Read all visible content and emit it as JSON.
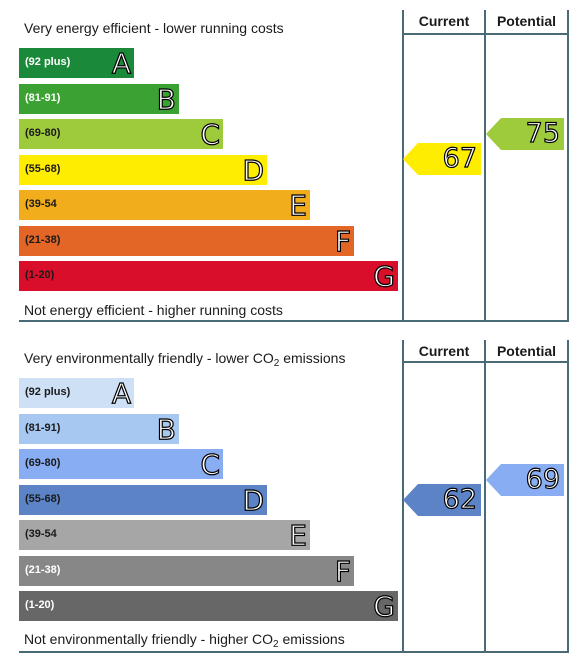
{
  "energy": {
    "top_caption": "Very energy efficient - lower running costs",
    "bottom_caption": "Not energy efficient - higher running costs",
    "current_label": "Current",
    "potential_label": "Potential",
    "current_value": "67",
    "potential_value": "75",
    "current_color": "#ffed00",
    "potential_color": "#9ecb3c",
    "bands": [
      {
        "range": "(92 plus)",
        "letter": "A",
        "color": "#1a8a3a",
        "text_color": "#ffffff"
      },
      {
        "range": "(81-91)",
        "letter": "B",
        "color": "#3aa132",
        "text_color": "#ffffff"
      },
      {
        "range": "(69-80)",
        "letter": "C",
        "color": "#9ecb3c",
        "text_color": "#1a1a1a"
      },
      {
        "range": "(55-68)",
        "letter": "D",
        "color": "#ffed00",
        "text_color": "#1a1a1a"
      },
      {
        "range": "(39-54",
        "letter": "E",
        "color": "#f2ad1c",
        "text_color": "#1a1a1a"
      },
      {
        "range": "(21-38)",
        "letter": "F",
        "color": "#e46626",
        "text_color": "#1a1a1a"
      },
      {
        "range": "(1-20)",
        "letter": "G",
        "color": "#d90e2a",
        "text_color": "#1a1a1a"
      }
    ]
  },
  "environment": {
    "top_caption_pre": "Very environmentally friendly - lower CO",
    "top_caption_sub": "2",
    "top_caption_post": " emissions",
    "bottom_caption_pre": "Not environmentally friendly - higher CO",
    "bottom_caption_sub": "2",
    "bottom_caption_post": " emissions",
    "current_label": "Current",
    "potential_label": "Potential",
    "current_value": "62",
    "potential_value": "69",
    "current_color": "#5b83c6",
    "potential_color": "#88adf2",
    "bands": [
      {
        "range": "(92 plus)",
        "letter": "A",
        "color": "#cde0f6",
        "text_color": "#1a1a1a"
      },
      {
        "range": "(81-91)",
        "letter": "B",
        "color": "#a7c8f1",
        "text_color": "#1a1a1a"
      },
      {
        "range": "(69-80)",
        "letter": "C",
        "color": "#88adf2",
        "text_color": "#1a1a1a"
      },
      {
        "range": "(55-68)",
        "letter": "D",
        "color": "#5b83c6",
        "text_color": "#1a1a1a"
      },
      {
        "range": "(39-54",
        "letter": "E",
        "color": "#a6a6a6",
        "text_color": "#1a1a1a"
      },
      {
        "range": "(21-38)",
        "letter": "F",
        "color": "#878787",
        "text_color": "#ffffff"
      },
      {
        "range": "(1-20)",
        "letter": "G",
        "color": "#676767",
        "text_color": "#ffffff"
      }
    ]
  }
}
